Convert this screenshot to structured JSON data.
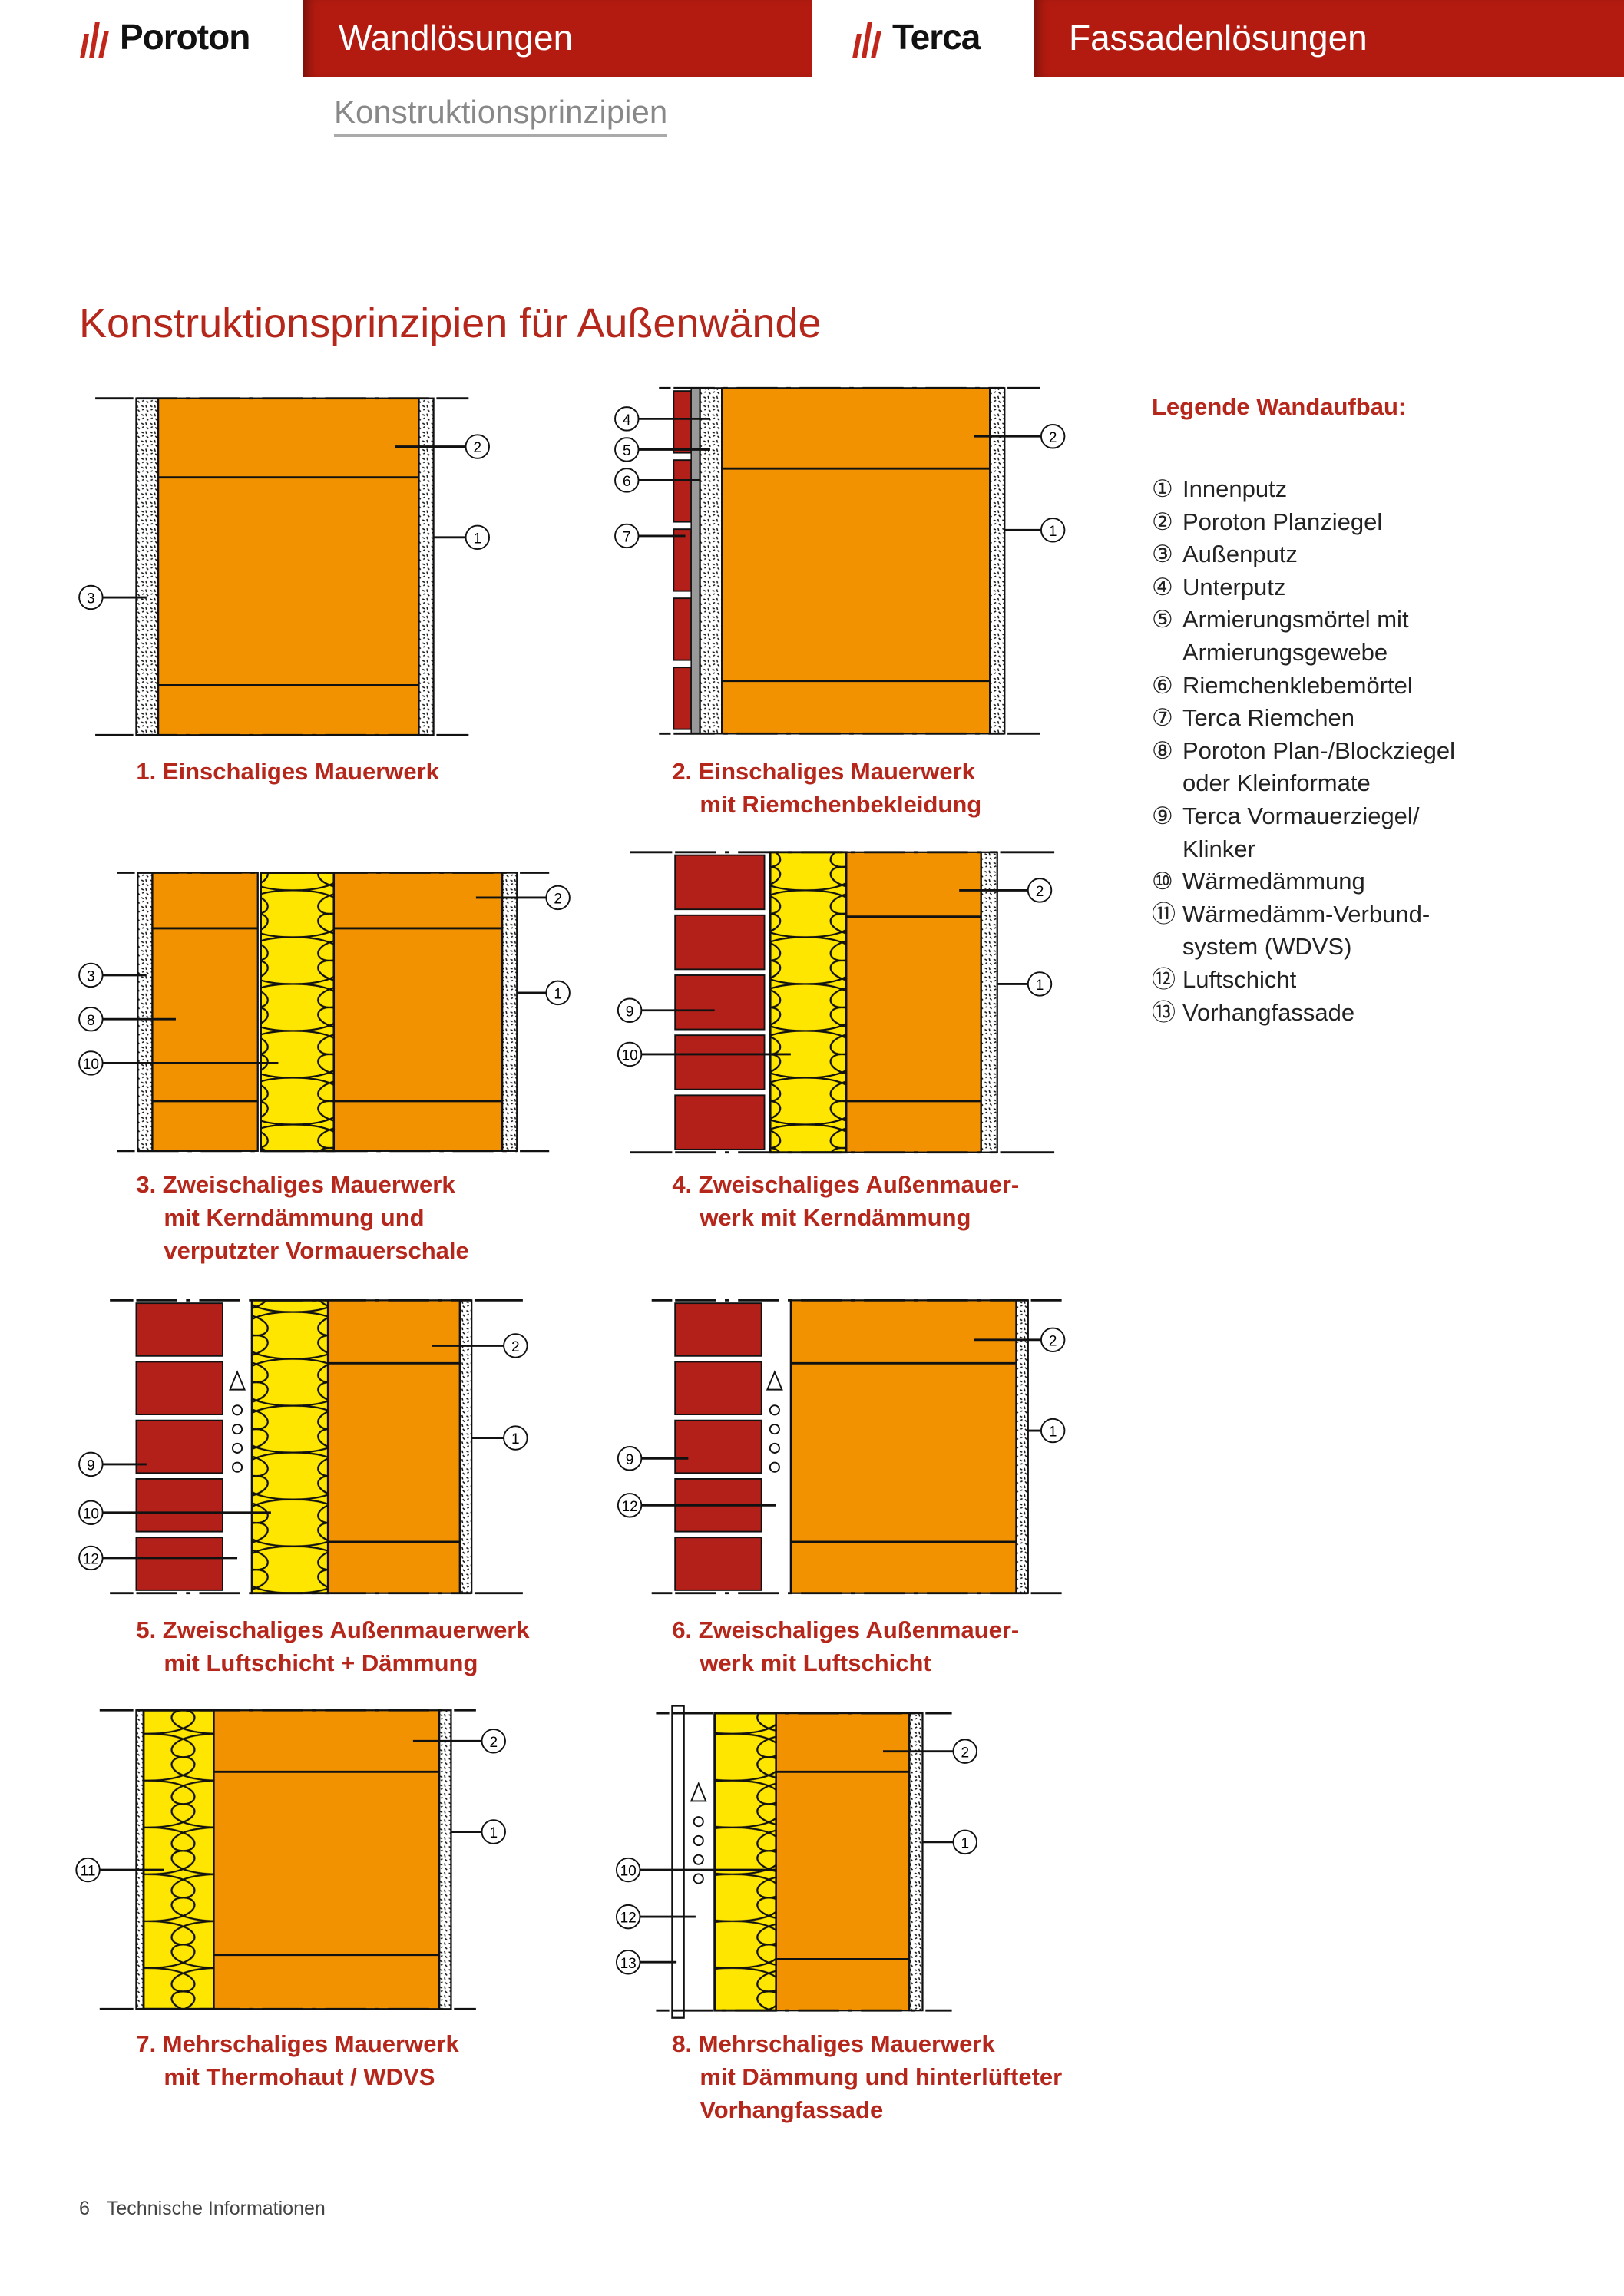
{
  "header": {
    "brand1": "Poroton",
    "tab1": "Wandlösungen",
    "brand2": "Terca",
    "tab2": "Fassadenlösungen",
    "subtitle": "Konstruktionsprinzipien",
    "accent": "#b31b10"
  },
  "title": "Konstruktionsprinzipien für Außenwände",
  "legend": {
    "heading": "Legende Wandaufbau:",
    "items": [
      {
        "num": "①",
        "text": [
          "Innenputz"
        ]
      },
      {
        "num": "②",
        "text": [
          "Poroton Planziegel"
        ]
      },
      {
        "num": "③",
        "text": [
          "Außenputz"
        ]
      },
      {
        "num": "④",
        "text": [
          "Unterputz"
        ]
      },
      {
        "num": "⑤",
        "text": [
          "Armierungsmörtel mit",
          "Armierungsgewebe"
        ]
      },
      {
        "num": "⑥",
        "text": [
          "Riemchenklebemörtel"
        ]
      },
      {
        "num": "⑦",
        "text": [
          "Terca Riemchen"
        ]
      },
      {
        "num": "⑧",
        "text": [
          "Poroton Plan-/Blockziegel",
          "oder Kleinformate"
        ]
      },
      {
        "num": "⑨",
        "text": [
          "Terca Vormauerziegel/",
          "Klinker"
        ]
      },
      {
        "num": "⑩",
        "text": [
          "Wärmedämmung"
        ]
      },
      {
        "num": "⑪",
        "text": [
          "Wärmedämm-Verbund-",
          "system (WDVS)"
        ]
      },
      {
        "num": "⑫",
        "text": [
          "Luftschicht"
        ]
      },
      {
        "num": "⑬",
        "text": [
          "Vorhangfassade"
        ]
      }
    ]
  },
  "diagrams": [
    {
      "caption": [
        "1. Einschaliges Mauerwerk"
      ],
      "callouts": [
        "2",
        "1",
        "3"
      ]
    },
    {
      "caption": [
        "2. Einschaliges Mauerwerk",
        "mit Riemchenbekleidung"
      ],
      "callouts": [
        "4",
        "5",
        "6",
        "7",
        "2",
        "1"
      ]
    },
    {
      "caption": [
        "3. Zweischaliges Mauerwerk",
        "mit Kerndämmung und",
        "verputzter Vormauerschale"
      ],
      "callouts": [
        "3",
        "8",
        "10",
        "2",
        "1"
      ]
    },
    {
      "caption": [
        "4. Zweischaliges Außenmauer-",
        "werk mit Kerndämmung"
      ],
      "callouts": [
        "9",
        "10",
        "2",
        "1"
      ]
    },
    {
      "caption": [
        "5. Zweischaliges Außenmauerwerk",
        "mit Luftschicht + Dämmung"
      ],
      "callouts": [
        "9",
        "10",
        "12",
        "2",
        "1"
      ]
    },
    {
      "caption": [
        "6. Zweischaliges Außenmauer-",
        "werk mit Luftschicht"
      ],
      "callouts": [
        "9",
        "12",
        "2",
        "1"
      ]
    },
    {
      "caption": [
        "7. Mehrschaliges Mauerwerk",
        "mit Thermohaut / WDVS"
      ],
      "callouts": [
        "11",
        "2",
        "1"
      ]
    },
    {
      "caption": [
        "8. Mehrschaliges Mauerwerk",
        "mit Dämmung und hinterlüfteter",
        "Vorhangfassade"
      ],
      "callouts": [
        "10",
        "12",
        "13",
        "2",
        "1"
      ]
    }
  ],
  "footer": {
    "page": "6",
    "text": "Technische Informationen"
  },
  "colors": {
    "brick": "#f39200",
    "clinker": "#b3201a",
    "insulation": "#ffe600",
    "title": "#b5261b"
  }
}
